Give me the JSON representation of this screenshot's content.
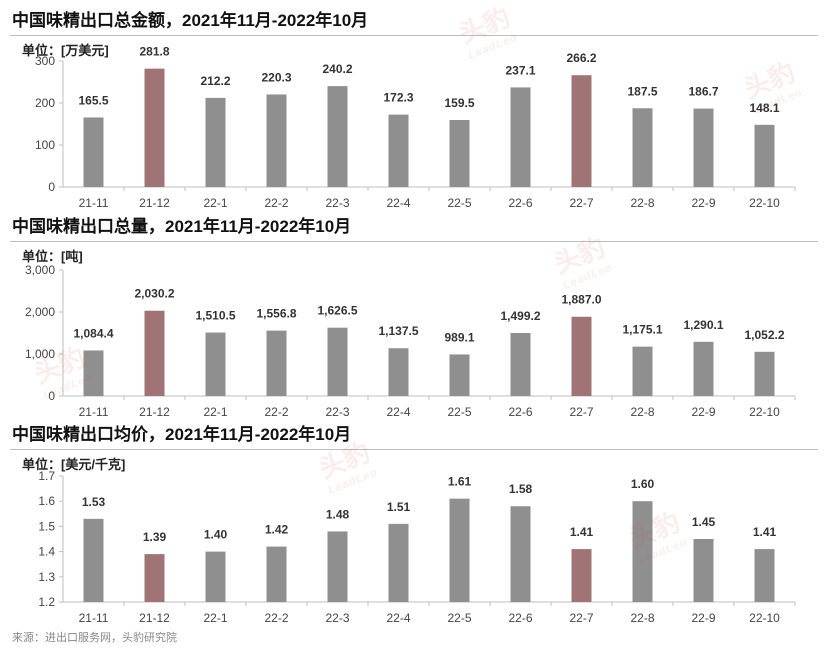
{
  "colors": {
    "gray": "#8f8f8f",
    "highlight": "#a07474",
    "axis": "#bfbfbf"
  },
  "watermark": {
    "text": "头豹",
    "sub": "LeadLeo"
  },
  "source": "来源：进出口服务网，头豹研究院",
  "chart_data": [
    {
      "type": "bar",
      "title": "中国味精出口总金额，2021年11月-2022年10月",
      "ylabel": "单位：[万美元]",
      "categories": [
        "21-11",
        "21-12",
        "22-1",
        "22-2",
        "22-3",
        "22-4",
        "22-5",
        "22-6",
        "22-7",
        "22-8",
        "22-9",
        "22-10"
      ],
      "values": [
        165.5,
        281.8,
        212.2,
        220.3,
        240.2,
        172.3,
        159.5,
        237.1,
        266.2,
        187.5,
        186.7,
        148.1
      ],
      "labels": [
        "165.5",
        "281.8",
        "212.2",
        "220.3",
        "240.2",
        "172.3",
        "159.5",
        "237.1",
        "266.2",
        "187.5",
        "186.7",
        "148.1"
      ],
      "highlight": [
        "21-12",
        "22-7"
      ],
      "ylim": [
        0,
        300
      ],
      "yticks": [
        0,
        100,
        200,
        300
      ],
      "ytick_labels": [
        "0",
        "100",
        "200",
        "300"
      ],
      "grid": false
    },
    {
      "type": "bar",
      "title": "中国味精出口总量，2021年11月-2022年10月",
      "ylabel": "单位：[吨]",
      "categories": [
        "21-11",
        "21-12",
        "22-1",
        "22-2",
        "22-3",
        "22-4",
        "22-5",
        "22-6",
        "22-7",
        "22-8",
        "22-9",
        "22-10"
      ],
      "values": [
        1084.4,
        2030.2,
        1510.5,
        1556.8,
        1626.5,
        1137.5,
        989.1,
        1499.2,
        1887.0,
        1175.1,
        1290.1,
        1052.2
      ],
      "labels": [
        "1,084.4",
        "2,030.2",
        "1,510.5",
        "1,556.8",
        "1,626.5",
        "1,137.5",
        "989.1",
        "1,499.2",
        "1,887.0",
        "1,175.1",
        "1,290.1",
        "1,052.2"
      ],
      "highlight": [
        "21-12",
        "22-7"
      ],
      "ylim": [
        0,
        3000
      ],
      "yticks": [
        0,
        1000,
        2000,
        3000
      ],
      "ytick_labels": [
        "0",
        "1,000",
        "2,000",
        "3,000"
      ],
      "grid": false
    },
    {
      "type": "bar",
      "title": "中国味精出口均价，2021年11月-2022年10月",
      "ylabel": "单位：[美元/千克]",
      "categories": [
        "21-11",
        "21-12",
        "22-1",
        "22-2",
        "22-3",
        "22-4",
        "22-5",
        "22-6",
        "22-7",
        "22-8",
        "22-9",
        "22-10"
      ],
      "values": [
        1.53,
        1.39,
        1.4,
        1.42,
        1.48,
        1.51,
        1.61,
        1.58,
        1.41,
        1.6,
        1.45,
        1.41
      ],
      "labels": [
        "1.53",
        "1.39",
        "1.40",
        "1.42",
        "1.48",
        "1.51",
        "1.61",
        "1.58",
        "1.41",
        "1.60",
        "1.45",
        "1.41"
      ],
      "highlight": [
        "21-12",
        "22-7"
      ],
      "ylim": [
        1.2,
        1.7
      ],
      "yticks": [
        1.2,
        1.3,
        1.4,
        1.5,
        1.6,
        1.7
      ],
      "ytick_labels": [
        "1.2",
        "1.3",
        "1.4",
        "1.5",
        "1.6",
        "1.7"
      ],
      "grid": false
    }
  ]
}
